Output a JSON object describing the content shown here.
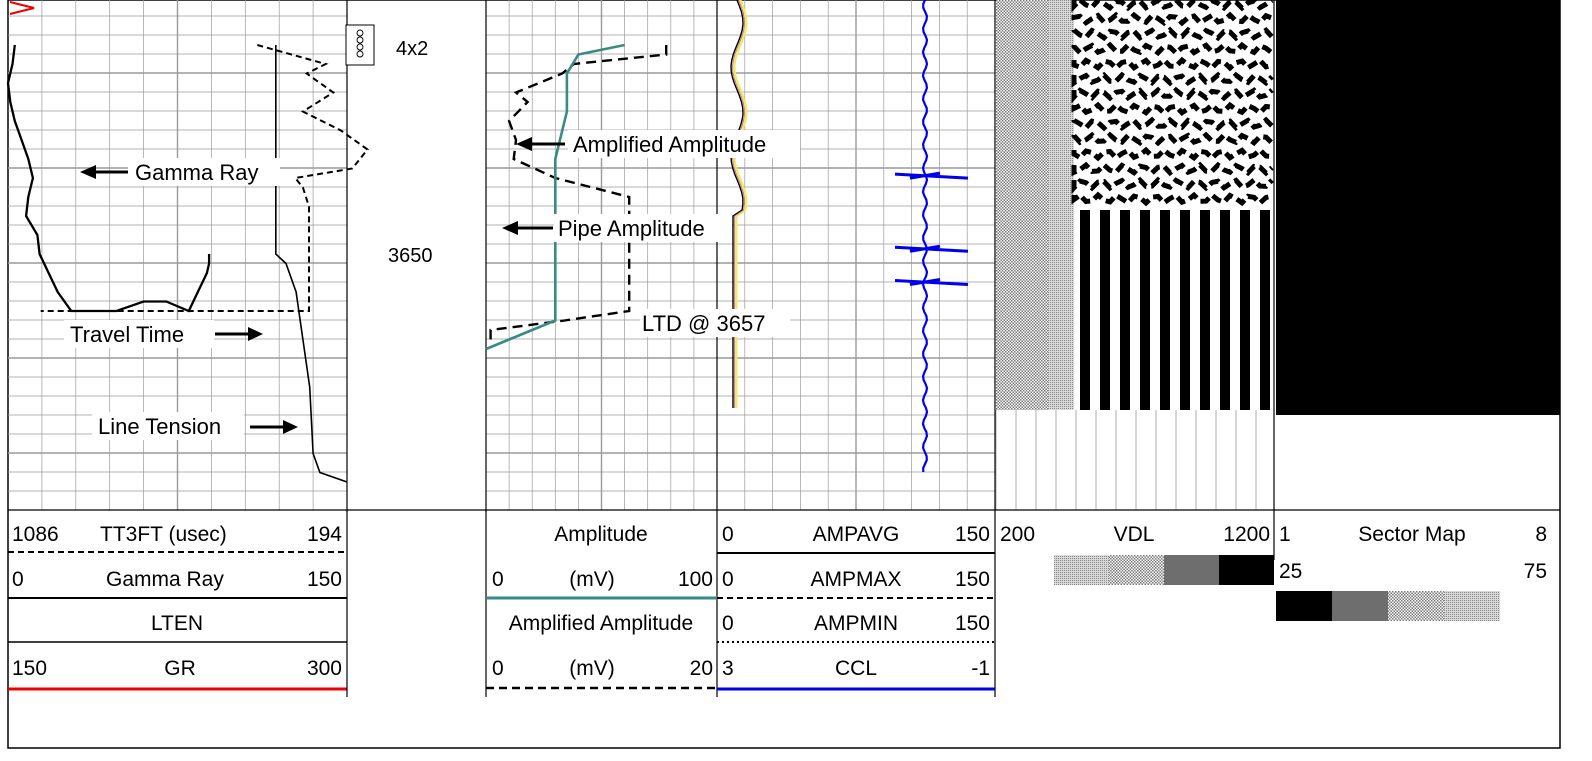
{
  "chart_data": {
    "type": "line",
    "depth_label": "3650",
    "casing_label": "4x2",
    "annotations": {
      "gamma_ray": "Gamma Ray",
      "travel_time": "Travel Time",
      "line_tension": "Line Tension",
      "amplified_amplitude": "Amplified Amplitude",
      "pipe_amplitude": "Pipe Amplitude",
      "ltd": "LTD @ 3657"
    },
    "colors": {
      "grid": "#9a9a9a",
      "amplitude": "#3a8a84",
      "ccl": "#0000ee",
      "gr": "#ee0000",
      "ampavg_highlight": "#f0ea60",
      "sector_map_fill": "#000000"
    },
    "legend": {
      "track1": [
        {
          "left": "1086",
          "name": "TT3FT (usec)",
          "right": "194",
          "style": "dashed"
        },
        {
          "left": "0",
          "name": "Gamma Ray",
          "right": "150",
          "style": "solid"
        },
        {
          "left": "",
          "name": "LTEN",
          "right": "",
          "style": "solid"
        },
        {
          "left": "150",
          "name": "GR",
          "right": "300",
          "style": "red"
        }
      ],
      "track2": {
        "header1": "Amplitude",
        "scale1": {
          "left": "0",
          "unit": "(mV)",
          "right": "100"
        },
        "header2": "Amplified Amplitude",
        "scale2": {
          "left": "0",
          "unit": "(mV)",
          "right": "20"
        }
      },
      "track3": [
        {
          "left": "0",
          "name": "AMPAVG",
          "right": "150",
          "style": "solid"
        },
        {
          "left": "0",
          "name": "AMPMAX",
          "right": "150",
          "style": "dashed"
        },
        {
          "left": "0",
          "name": "AMPMIN",
          "right": "150",
          "style": "dotted"
        },
        {
          "left": "3",
          "name": "CCL",
          "right": "-1",
          "style": "blue"
        }
      ],
      "vdl": {
        "left": "200",
        "name": "VDL",
        "right": "1200"
      },
      "sector_map": {
        "left": "1",
        "name": "Sector Map",
        "right": "8",
        "left2": "25",
        "right2": "75"
      }
    },
    "series": [
      {
        "name": "Gamma Ray",
        "range": [
          0,
          150
        ],
        "points": [
          [
            3,
            -22
          ],
          [
            2,
            -20
          ],
          [
            0,
            -18
          ],
          [
            1,
            -16
          ],
          [
            3,
            -14
          ],
          [
            6,
            -12
          ],
          [
            9,
            -10
          ],
          [
            11,
            -8
          ],
          [
            9,
            -6
          ],
          [
            8,
            -4
          ],
          [
            13,
            -2
          ],
          [
            14,
            0
          ],
          [
            22,
            4
          ],
          [
            28,
            6
          ],
          [
            48,
            6
          ],
          [
            60,
            5
          ],
          [
            70,
            5
          ],
          [
            80,
            6
          ],
          [
            84,
            4
          ],
          [
            86,
            3
          ],
          [
            88,
            2
          ],
          [
            89,
            1
          ],
          [
            89,
            0
          ]
        ]
      },
      {
        "name": "Travel Time",
        "range": [
          1086,
          194
        ],
        "points": [
          [
            430,
            -22
          ],
          [
            250,
            -20
          ],
          [
            300,
            -19
          ],
          [
            230,
            -17
          ],
          [
            310,
            -15
          ],
          [
            210,
            -13
          ],
          [
            140,
            -11
          ],
          [
            180,
            -9
          ],
          [
            330,
            -8
          ],
          [
            310,
            -7
          ],
          [
            294,
            -5
          ],
          [
            294,
            -2
          ],
          [
            294,
            0
          ],
          [
            294,
            2
          ],
          [
            294,
            4
          ],
          [
            294,
            6
          ],
          [
            1000,
            6
          ]
        ]
      },
      {
        "name": "Line Tension",
        "range": [
          0,
          100
        ],
        "points": [
          [
            79,
            -22
          ],
          [
            79,
            0
          ],
          [
            82,
            1
          ],
          [
            85,
            4
          ],
          [
            89,
            14
          ],
          [
            90,
            21
          ],
          [
            92,
            23
          ],
          [
            100,
            24
          ]
        ]
      },
      {
        "name": "Pipe Amplitude",
        "range": [
          0,
          100
        ],
        "points": [
          [
            78,
            -22
          ],
          [
            78,
            -21
          ],
          [
            38,
            -20
          ],
          [
            33,
            -19
          ],
          [
            13,
            -17
          ],
          [
            18,
            -16
          ],
          [
            10,
            -14
          ],
          [
            13,
            -12
          ],
          [
            12,
            -10
          ],
          [
            30,
            -8
          ],
          [
            62,
            -6
          ],
          [
            62,
            -2
          ],
          [
            62,
            4
          ],
          [
            62,
            6
          ],
          [
            34,
            7
          ],
          [
            2,
            8
          ],
          [
            2,
            9
          ]
        ]
      },
      {
        "name": "Amplified Amplitude",
        "range": [
          0,
          20
        ],
        "points": [
          [
            12,
            -22
          ],
          [
            8,
            -21
          ],
          [
            7,
            -19
          ],
          [
            7,
            -15
          ],
          [
            6,
            -10
          ],
          [
            6,
            -5
          ],
          [
            6,
            0
          ],
          [
            6,
            5
          ],
          [
            6,
            7
          ],
          [
            2,
            9
          ],
          [
            0,
            10
          ]
        ]
      },
      {
        "name": "AMPAVG",
        "range": [
          0,
          150
        ]
      },
      {
        "name": "AMPMAX",
        "range": [
          0,
          150
        ]
      },
      {
        "name": "AMPMIN",
        "range": [
          0,
          150
        ]
      },
      {
        "name": "CCL",
        "range": [
          3,
          -1
        ],
        "collars_at": [
          -8.2,
          3.0,
          -0.5
        ]
      }
    ]
  }
}
